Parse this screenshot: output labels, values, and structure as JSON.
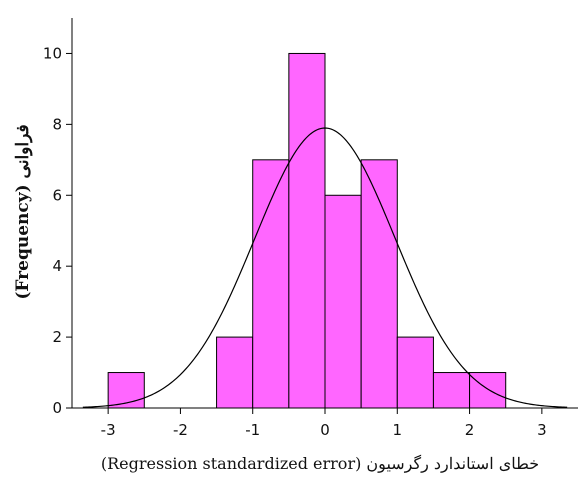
{
  "chart_data": {
    "type": "bar",
    "subtype": "histogram",
    "bins": [
      {
        "x0": -3.0,
        "x1": -2.5,
        "count": 1
      },
      {
        "x0": -2.5,
        "x1": -2.0,
        "count": 0
      },
      {
        "x0": -2.0,
        "x1": -1.5,
        "count": 0
      },
      {
        "x0": -1.5,
        "x1": -1.0,
        "count": 2
      },
      {
        "x0": -1.0,
        "x1": -0.5,
        "count": 7
      },
      {
        "x0": -0.5,
        "x1": 0.0,
        "count": 10
      },
      {
        "x0": 0.0,
        "x1": 0.5,
        "count": 6
      },
      {
        "x0": 0.5,
        "x1": 1.0,
        "count": 7
      },
      {
        "x0": 1.0,
        "x1": 1.5,
        "count": 2
      },
      {
        "x0": 1.5,
        "x1": 2.0,
        "count": 1
      },
      {
        "x0": 2.0,
        "x1": 2.5,
        "count": 1
      }
    ],
    "normal_curve": {
      "mean": 0.0,
      "sd": 0.97,
      "scale": 19.2
    },
    "bar_color": "#ff66ff",
    "bar_edge_color": "#000000",
    "xlim": [
      -3.5,
      3.5
    ],
    "ylim": [
      0,
      11
    ],
    "xticks": [
      -3,
      -2,
      -1,
      0,
      1,
      2,
      3
    ],
    "yticks": [
      0,
      2,
      4,
      6,
      8,
      10
    ],
    "xlabel": "(Regression standardized error)  خطای استاندارد رگرسیون",
    "ylabel": "(Frequency)  فراوانی",
    "grid": false
  }
}
